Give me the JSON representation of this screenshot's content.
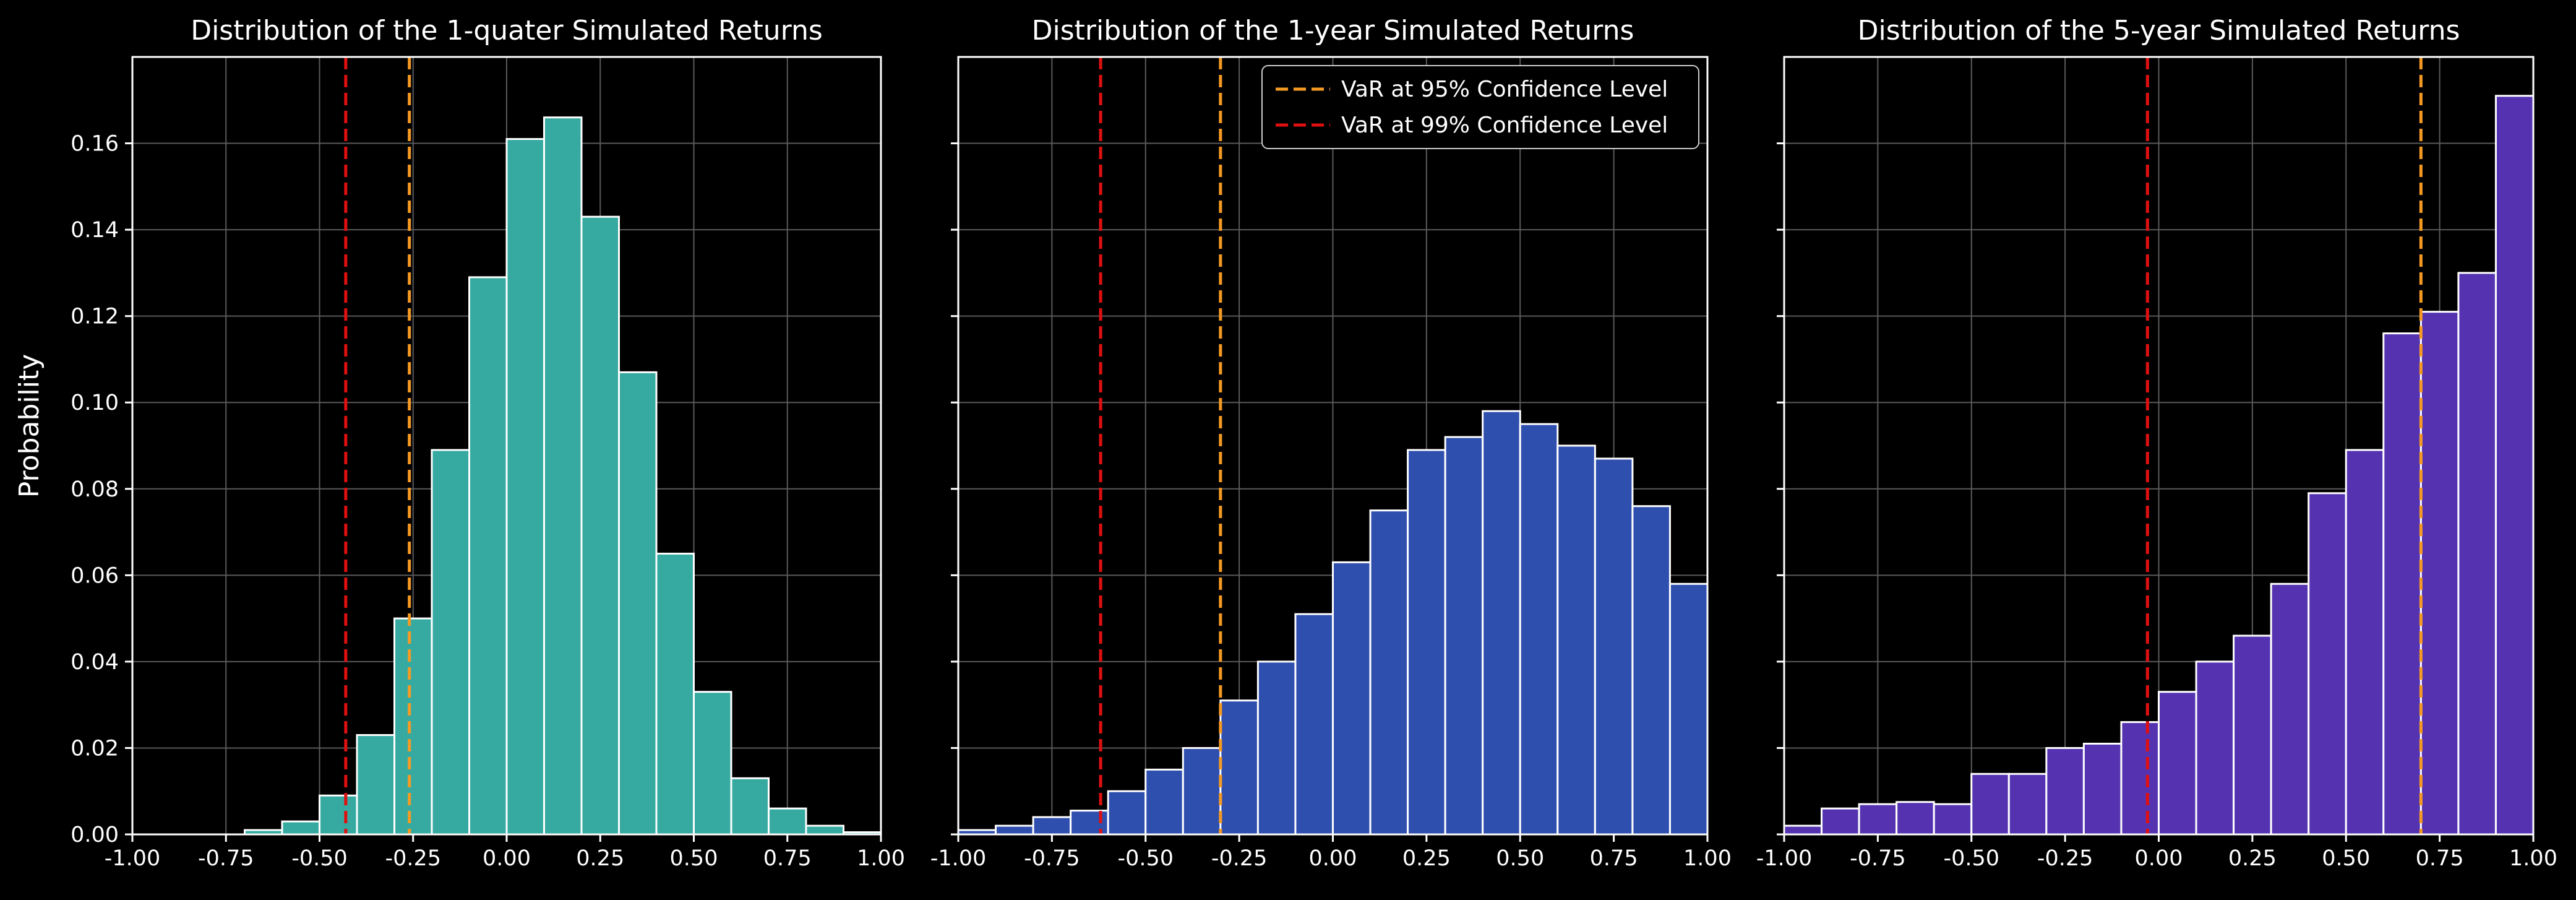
{
  "figure": {
    "background": "#000000",
    "ylabel": "Probability"
  },
  "legend": {
    "placement": "upper-right of middle panel",
    "entries": [
      {
        "label": "VaR at 95% Confidence Level",
        "color": "#f59a23"
      },
      {
        "label": "VaR at 99% Confidence Level",
        "color": "#e01010"
      }
    ]
  },
  "chart_data": [
    {
      "type": "bar",
      "title": "Distribution of the 1-quater Simulated Returns",
      "xlabel": "",
      "ylabel": "Probability",
      "xlim": [
        -1.0,
        1.0
      ],
      "ylim": [
        0.0,
        0.18
      ],
      "grid": true,
      "bar_color": "#36aaa0",
      "x_ticks": [
        "-1.00",
        "-0.75",
        "-0.50",
        "-0.25",
        "0.00",
        "0.25",
        "0.50",
        "0.75",
        "1.00"
      ],
      "y_ticks": [
        "0.00",
        "0.02",
        "0.04",
        "0.06",
        "0.08",
        "0.10",
        "0.12",
        "0.14",
        "0.16"
      ],
      "show_y_ticks": true,
      "bins": [
        {
          "x0": -0.7,
          "x1": -0.6,
          "value": 0.001
        },
        {
          "x0": -0.6,
          "x1": -0.5,
          "value": 0.003
        },
        {
          "x0": -0.5,
          "x1": -0.4,
          "value": 0.009
        },
        {
          "x0": -0.4,
          "x1": -0.3,
          "value": 0.023
        },
        {
          "x0": -0.3,
          "x1": -0.2,
          "value": 0.05
        },
        {
          "x0": -0.2,
          "x1": -0.1,
          "value": 0.089
        },
        {
          "x0": -0.1,
          "x1": 0.0,
          "value": 0.129
        },
        {
          "x0": 0.0,
          "x1": 0.1,
          "value": 0.161
        },
        {
          "x0": 0.1,
          "x1": 0.2,
          "value": 0.166
        },
        {
          "x0": 0.2,
          "x1": 0.3,
          "value": 0.143
        },
        {
          "x0": 0.3,
          "x1": 0.4,
          "value": 0.107
        },
        {
          "x0": 0.4,
          "x1": 0.5,
          "value": 0.065
        },
        {
          "x0": 0.5,
          "x1": 0.6,
          "value": 0.033
        },
        {
          "x0": 0.6,
          "x1": 0.7,
          "value": 0.013
        },
        {
          "x0": 0.7,
          "x1": 0.8,
          "value": 0.006
        },
        {
          "x0": 0.8,
          "x1": 0.9,
          "value": 0.002
        },
        {
          "x0": 0.9,
          "x1": 1.0,
          "value": 0.0005
        }
      ],
      "var95": -0.26,
      "var99": -0.43
    },
    {
      "type": "bar",
      "title": "Distribution of the 1-year Simulated Returns",
      "xlabel": "",
      "ylabel": "",
      "xlim": [
        -1.0,
        1.0
      ],
      "ylim": [
        0.0,
        0.18
      ],
      "grid": true,
      "bar_color": "#2f4fae",
      "x_ticks": [
        "-1.00",
        "-0.75",
        "-0.50",
        "-0.25",
        "0.00",
        "0.25",
        "0.50",
        "0.75",
        "1.00"
      ],
      "y_ticks": [],
      "show_y_ticks": false,
      "bins": [
        {
          "x0": -1.0,
          "x1": -0.9,
          "value": 0.001
        },
        {
          "x0": -0.9,
          "x1": -0.8,
          "value": 0.002
        },
        {
          "x0": -0.8,
          "x1": -0.7,
          "value": 0.004
        },
        {
          "x0": -0.7,
          "x1": -0.6,
          "value": 0.0055
        },
        {
          "x0": -0.6,
          "x1": -0.5,
          "value": 0.01
        },
        {
          "x0": -0.5,
          "x1": -0.4,
          "value": 0.015
        },
        {
          "x0": -0.4,
          "x1": -0.3,
          "value": 0.02
        },
        {
          "x0": -0.3,
          "x1": -0.2,
          "value": 0.031
        },
        {
          "x0": -0.2,
          "x1": -0.1,
          "value": 0.04
        },
        {
          "x0": -0.1,
          "x1": 0.0,
          "value": 0.051
        },
        {
          "x0": 0.0,
          "x1": 0.1,
          "value": 0.063
        },
        {
          "x0": 0.1,
          "x1": 0.2,
          "value": 0.075
        },
        {
          "x0": 0.2,
          "x1": 0.3,
          "value": 0.089
        },
        {
          "x0": 0.3,
          "x1": 0.4,
          "value": 0.092
        },
        {
          "x0": 0.4,
          "x1": 0.5,
          "value": 0.098
        },
        {
          "x0": 0.5,
          "x1": 0.6,
          "value": 0.095
        },
        {
          "x0": 0.6,
          "x1": 0.7,
          "value": 0.09
        },
        {
          "x0": 0.7,
          "x1": 0.8,
          "value": 0.087
        },
        {
          "x0": 0.8,
          "x1": 0.9,
          "value": 0.076
        },
        {
          "x0": 0.9,
          "x1": 1.0,
          "value": 0.058
        }
      ],
      "var95": -0.3,
      "var99": -0.62
    },
    {
      "type": "bar",
      "title": "Distribution of the 5-year Simulated Returns",
      "xlabel": "",
      "ylabel": "",
      "xlim": [
        -1.0,
        1.0
      ],
      "ylim": [
        0.0,
        0.18
      ],
      "grid": true,
      "bar_color": "#5533b0",
      "x_ticks": [
        "-1.00",
        "-0.75",
        "-0.50",
        "-0.25",
        "0.00",
        "0.25",
        "0.50",
        "0.75",
        "1.00"
      ],
      "y_ticks": [],
      "show_y_ticks": false,
      "bins": [
        {
          "x0": -1.0,
          "x1": -0.9,
          "value": 0.002
        },
        {
          "x0": -0.9,
          "x1": -0.8,
          "value": 0.006
        },
        {
          "x0": -0.8,
          "x1": -0.7,
          "value": 0.007
        },
        {
          "x0": -0.7,
          "x1": -0.6,
          "value": 0.0075
        },
        {
          "x0": -0.6,
          "x1": -0.5,
          "value": 0.007
        },
        {
          "x0": -0.5,
          "x1": -0.4,
          "value": 0.014
        },
        {
          "x0": -0.4,
          "x1": -0.3,
          "value": 0.014
        },
        {
          "x0": -0.3,
          "x1": -0.2,
          "value": 0.02
        },
        {
          "x0": -0.2,
          "x1": -0.1,
          "value": 0.021
        },
        {
          "x0": -0.1,
          "x1": 0.0,
          "value": 0.026
        },
        {
          "x0": 0.0,
          "x1": 0.1,
          "value": 0.033
        },
        {
          "x0": 0.1,
          "x1": 0.2,
          "value": 0.04
        },
        {
          "x0": 0.2,
          "x1": 0.3,
          "value": 0.046
        },
        {
          "x0": 0.3,
          "x1": 0.4,
          "value": 0.058
        },
        {
          "x0": 0.4,
          "x1": 0.5,
          "value": 0.079
        },
        {
          "x0": 0.5,
          "x1": 0.6,
          "value": 0.089
        },
        {
          "x0": 0.6,
          "x1": 0.7,
          "value": 0.116
        },
        {
          "x0": 0.7,
          "x1": 0.8,
          "value": 0.121
        },
        {
          "x0": 0.8,
          "x1": 0.9,
          "value": 0.13
        },
        {
          "x0": 0.9,
          "x1": 1.0,
          "value": 0.171
        }
      ],
      "var95": 0.7,
      "var99": -0.03
    }
  ]
}
